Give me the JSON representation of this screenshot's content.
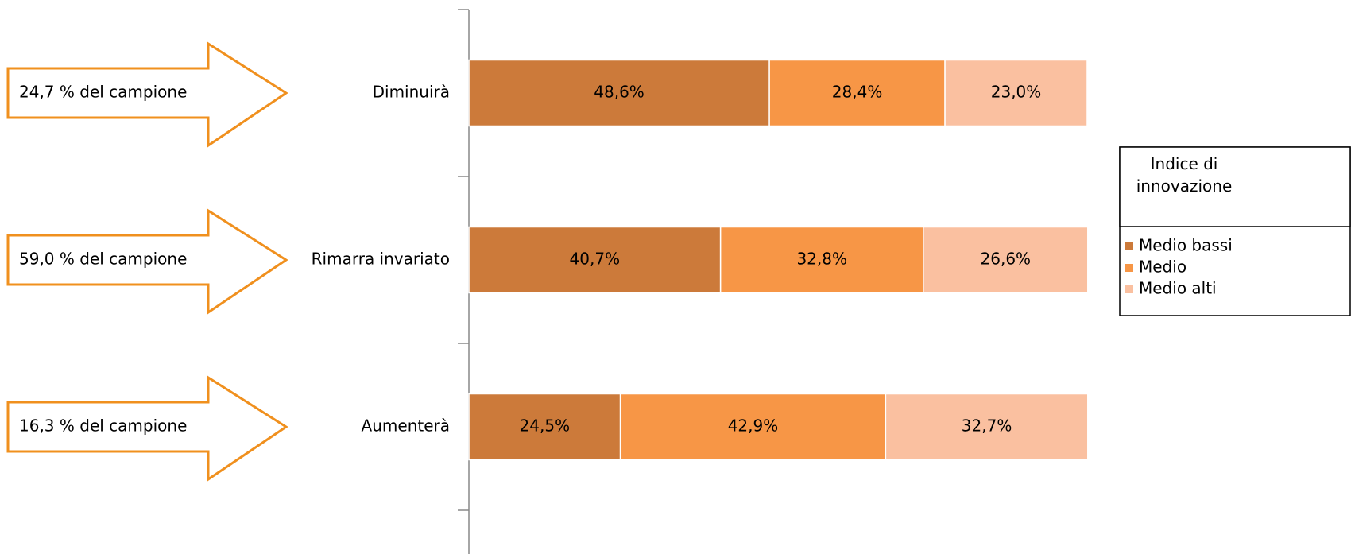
{
  "chart_data": {
    "type": "stacked_barh",
    "categories": [
      "Diminuirà",
      "Rimarra invariato",
      "Aumenterà"
    ],
    "series": [
      {
        "name": "Medio bassi",
        "color": "#cc7a3a",
        "values": [
          48.6,
          40.7,
          24.5
        ],
        "value_labels": [
          "48,6%",
          "40,7%",
          "24,5%"
        ]
      },
      {
        "name": "Medio",
        "color": "#f79646",
        "values": [
          28.4,
          32.8,
          42.9
        ],
        "value_labels": [
          "28,4%",
          "32,8%",
          "42,9%"
        ]
      },
      {
        "name": "Medio alti",
        "color": "#fac0a0",
        "values": [
          23.0,
          26.6,
          32.7
        ],
        "value_labels": [
          "23,0%",
          "26,6%",
          "32,7%"
        ]
      }
    ],
    "xlim": [
      0,
      100
    ],
    "legend_title": "Indice di innovazione",
    "legend_position": "right",
    "annotations": [
      "24,7 % del campione",
      "59,0 % del campione",
      "16,3 % del campione"
    ]
  }
}
